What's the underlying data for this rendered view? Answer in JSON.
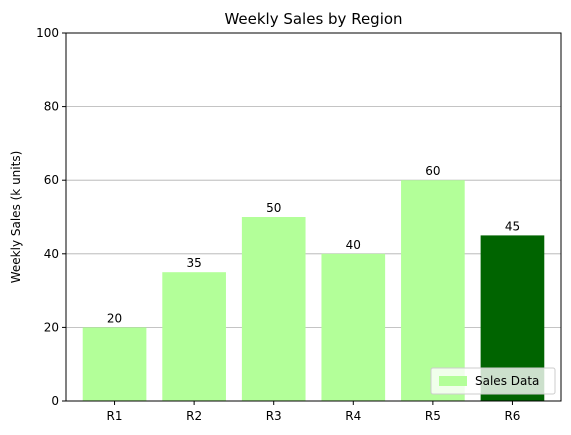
{
  "chart_data": {
    "type": "bar",
    "title": "Weekly Sales by Region",
    "xlabel": "",
    "ylabel": "Weekly Sales (k units)",
    "categories": [
      "R1",
      "R2",
      "R3",
      "R4",
      "R5",
      "R6"
    ],
    "series": [
      {
        "name": "Sales Data",
        "values": [
          20,
          35,
          50,
          40,
          60,
          45
        ]
      }
    ],
    "data_labels": [
      "20",
      "35",
      "50",
      "40",
      "60",
      "45"
    ],
    "ylim": [
      0,
      100
    ],
    "yticks": [
      0,
      20,
      40,
      60,
      80,
      100
    ],
    "ytick_labels": [
      "0",
      "20",
      "40",
      "60",
      "80",
      "100"
    ],
    "grid": "horizontal",
    "legend_position": "bottom-right",
    "colors": {
      "bar_default": "#b3ff99",
      "bar_highlight": "#006400",
      "grid": "#b0b0b0",
      "axis": "#000000"
    },
    "highlight_index": 5
  }
}
